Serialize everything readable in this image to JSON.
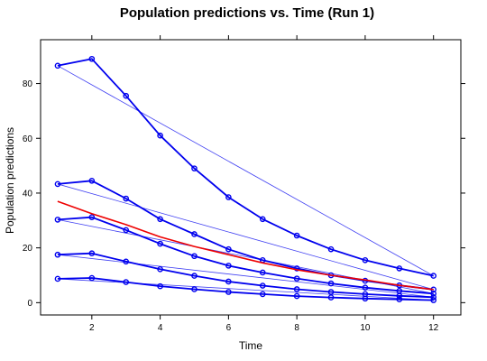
{
  "chart_data": {
    "type": "line",
    "title": "Population predictions vs. Time (Run 1)",
    "xlabel": "Time",
    "ylabel": "Population predictions",
    "xlim": [
      0.5,
      12.8
    ],
    "ylim": [
      -4.5,
      96
    ],
    "xticks": [
      2,
      4,
      6,
      8,
      10,
      12
    ],
    "yticks": [
      0,
      20,
      40,
      60,
      80
    ],
    "grid": false,
    "individual_color": "#0000ee",
    "mean_color": "#ee0000",
    "individuals": [
      {
        "x": [
          1,
          2,
          3,
          4,
          5,
          6,
          7,
          8,
          9,
          10,
          11,
          12
        ],
        "y": [
          86.5,
          89,
          75.5,
          61,
          49,
          38.5,
          30.5,
          24.5,
          19.5,
          15.5,
          12.5,
          9.8
        ]
      },
      {
        "x": [
          1,
          2,
          3,
          4,
          5,
          6,
          7,
          8,
          9,
          10,
          11,
          12
        ],
        "y": [
          43.3,
          44.5,
          38,
          30.5,
          25,
          19.5,
          15.5,
          12.5,
          10,
          8,
          6.3,
          4.8
        ]
      },
      {
        "x": [
          1,
          2,
          3,
          4,
          5,
          6,
          7,
          8,
          9,
          10,
          11,
          12
        ],
        "y": [
          30.3,
          31.2,
          26.5,
          21.5,
          17,
          13.5,
          11,
          8.8,
          7,
          5.5,
          4.3,
          3.3
        ]
      },
      {
        "x": [
          1,
          2,
          3,
          4,
          5,
          6,
          7,
          8,
          9,
          10,
          11,
          12
        ],
        "y": [
          17.5,
          18,
          15,
          12.2,
          9.8,
          7.7,
          6.2,
          4.9,
          3.9,
          3.1,
          2.5,
          2
        ]
      },
      {
        "x": [
          1,
          2,
          3,
          4,
          5,
          6,
          7,
          8,
          9,
          10,
          11,
          12
        ],
        "y": [
          8.7,
          9,
          7.5,
          6,
          4.9,
          3.9,
          3.1,
          2.4,
          1.9,
          1.5,
          1.2,
          0.9
        ]
      }
    ],
    "mean_curve": {
      "x": [
        1,
        2,
        3,
        4,
        5,
        6,
        7,
        8,
        9,
        10,
        11,
        12
      ],
      "y": [
        37,
        32.5,
        28.5,
        24,
        20.5,
        17.5,
        14.5,
        12,
        10,
        8.3,
        6.3,
        4.8
      ]
    }
  }
}
